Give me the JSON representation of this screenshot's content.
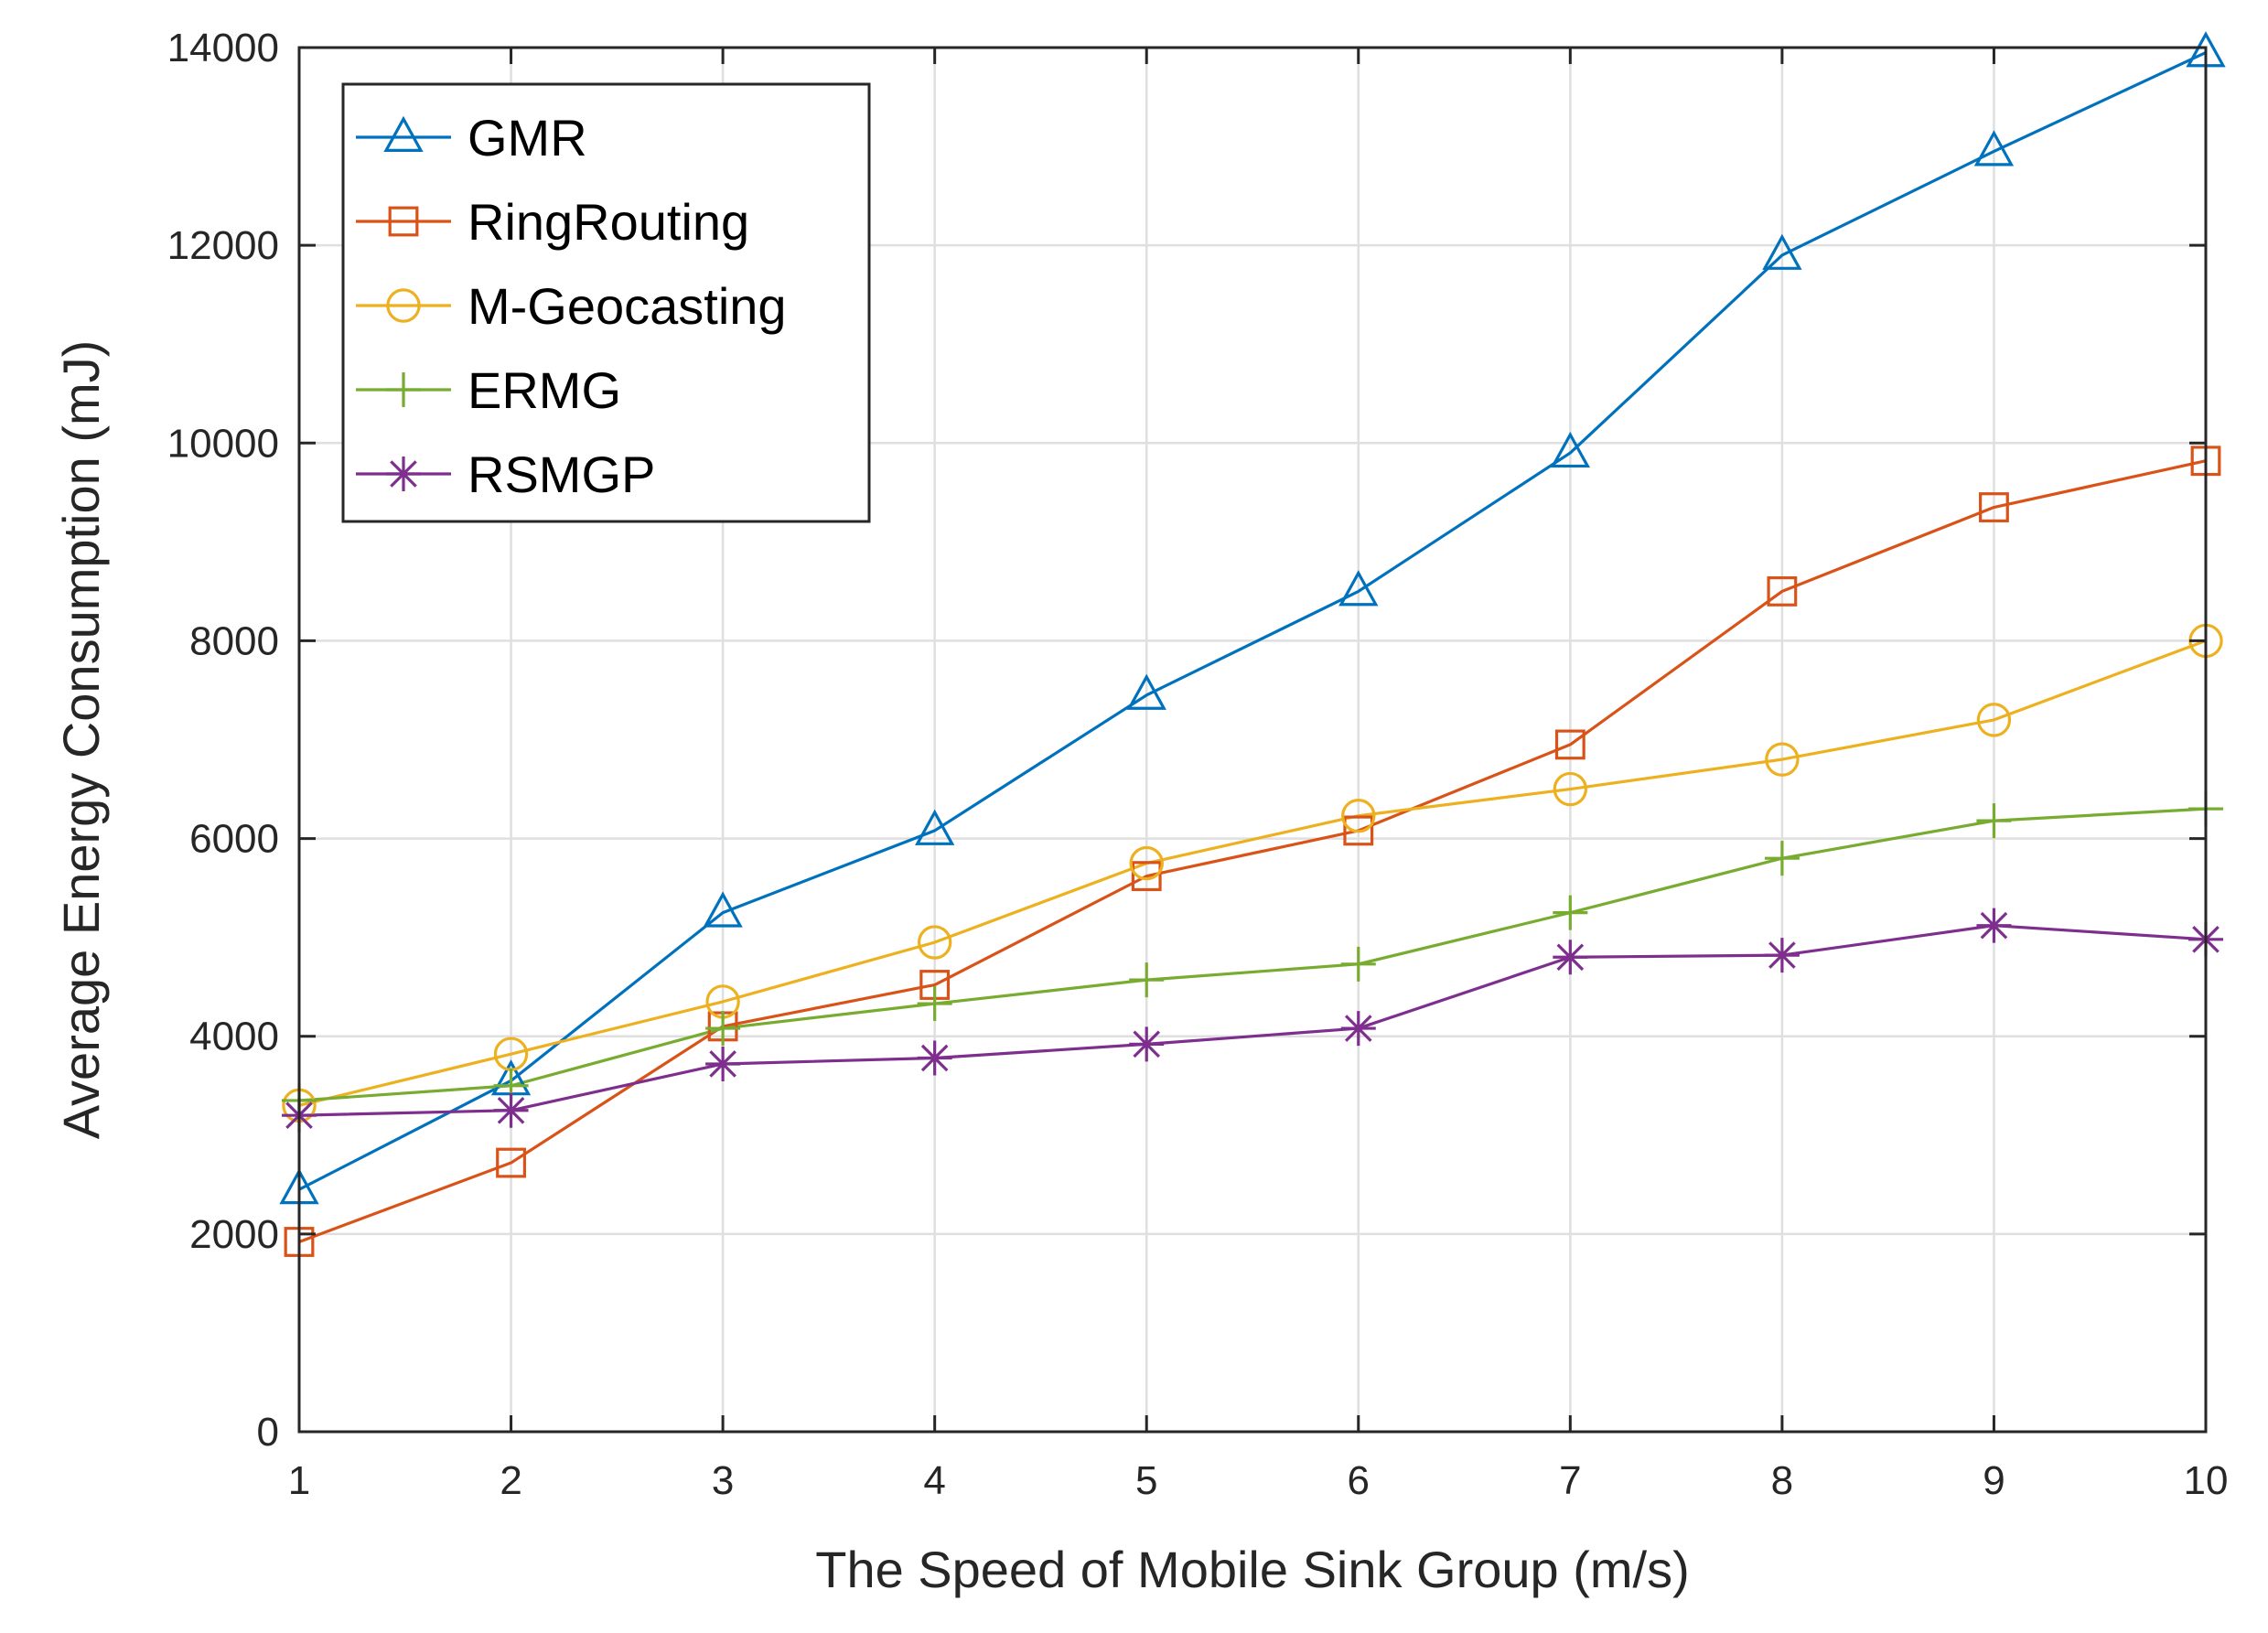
{
  "chart_data": {
    "type": "line",
    "title": "",
    "xlabel": "The Speed of Mobile Sink Group (m/s)",
    "ylabel": "Average Energy Consumption (mJ)",
    "x": [
      1,
      2,
      3,
      4,
      5,
      6,
      7,
      8,
      9,
      10
    ],
    "xlim": [
      1,
      10
    ],
    "ylim": [
      0,
      14000
    ],
    "xticks": [
      "1",
      "2",
      "3",
      "4",
      "5",
      "6",
      "7",
      "8",
      "9",
      "10"
    ],
    "yticks": [
      "0",
      "2000",
      "4000",
      "6000",
      "8000",
      "10000",
      "12000",
      "14000"
    ],
    "grid": true,
    "legend_position": "top-left",
    "series": [
      {
        "name": "GMR",
        "marker": "triangle",
        "color": "#0072BD",
        "values": [
          2450,
          3550,
          5250,
          6080,
          7450,
          8500,
          9900,
          11900,
          12950,
          13950
        ]
      },
      {
        "name": "RingRouting",
        "marker": "square",
        "color": "#D95319",
        "values": [
          1920,
          2720,
          4100,
          4520,
          5620,
          6080,
          6950,
          8500,
          9350,
          9820
        ]
      },
      {
        "name": "M-Geocasting",
        "marker": "circle",
        "color": "#EDB120",
        "values": [
          3300,
          3820,
          4350,
          4950,
          5750,
          6230,
          6500,
          6800,
          7200,
          8000
        ]
      },
      {
        "name": "ERMG",
        "marker": "plus",
        "color": "#77AC30",
        "values": [
          3350,
          3500,
          4080,
          4330,
          4570,
          4730,
          5250,
          5800,
          6180,
          6300
        ]
      },
      {
        "name": "RSMGP",
        "marker": "star",
        "color": "#7E2F8E",
        "values": [
          3200,
          3250,
          3720,
          3780,
          3920,
          4080,
          4800,
          4820,
          5120,
          4980
        ]
      }
    ]
  }
}
